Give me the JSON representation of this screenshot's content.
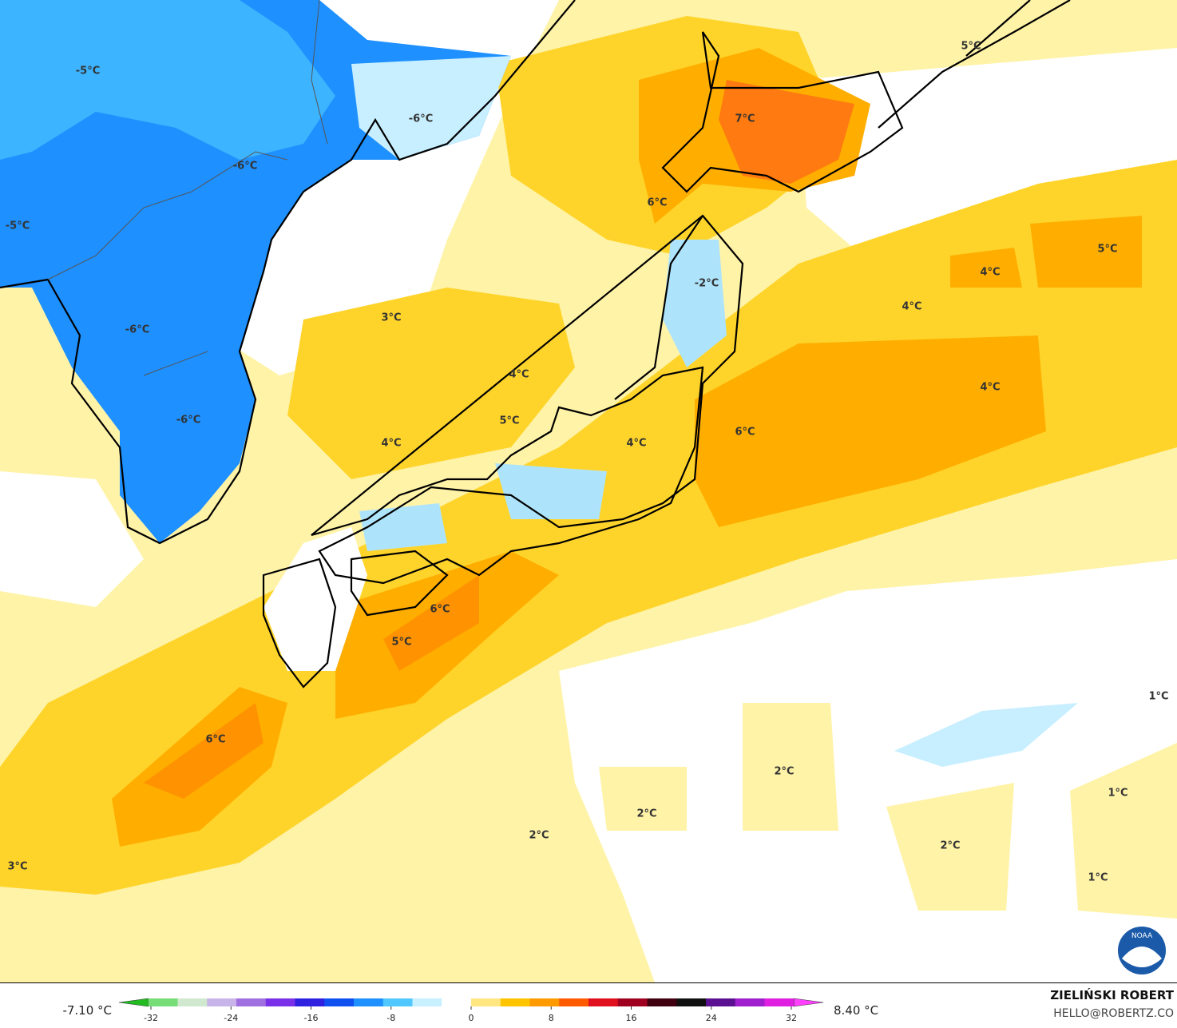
{
  "map": {
    "labels": [
      "-5°C",
      "-6°C",
      "-6°C",
      "-5°C",
      "-6°C",
      "-6°C",
      "7°C",
      "6°C",
      "-2°C",
      "5°C",
      "5°C",
      "4°C",
      "4°C",
      "4°C",
      "6°C",
      "3°C",
      "4°C",
      "5°C",
      "4°C",
      "4°C",
      "6°C",
      "5°C",
      "6°C",
      "2°C",
      "2°C",
      "2°C",
      "1°C",
      "1°C",
      "2°C",
      "1°C",
      "3°C"
    ],
    "logo": "NOAA"
  },
  "colorbar": {
    "min_label": "-7.10 °C",
    "max_label": "8.40 °C",
    "ticks": [
      -32,
      -24,
      -16,
      -8,
      0,
      8,
      16,
      24,
      32
    ],
    "colors": [
      "#22bb22",
      "#77dd77",
      "#cfe8cf",
      "#c8b4e8",
      "#a070e0",
      "#7a30e8",
      "#3020e0",
      "#1050f0",
      "#1e90ff",
      "#50c8ff",
      "#c8f0ff",
      "#ffffff",
      "#ffe680",
      "#ffc400",
      "#ff9a00",
      "#ff5a00",
      "#e0101e",
      "#a00020",
      "#400010",
      "#101010",
      "#5a1090",
      "#a020d0",
      "#e020e0",
      "#ff40ff"
    ]
  },
  "credits": {
    "author": "ZIELIŃSKI ROBERT",
    "contact": "HELLO@ROBERTZ.CO"
  }
}
